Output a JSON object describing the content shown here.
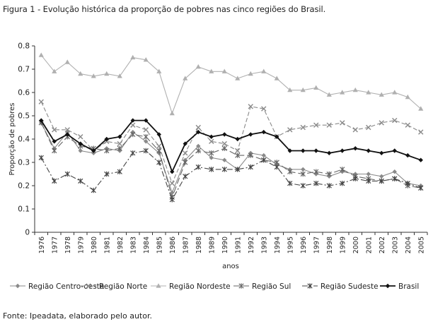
{
  "figure": {
    "caption": "Figura 1 - Evolução histórica da proporção de pobres nas cinco regiões do Brasil.",
    "source": "Fonte: Ipeadata, elaborado pelo autor."
  },
  "chart_data": {
    "type": "line",
    "title": "",
    "xlabel": "anos",
    "ylabel": "Proporção de pobres",
    "ylim": [
      0,
      0.8
    ],
    "yticks": [
      "0",
      "0.1",
      "0.2",
      "0.3",
      "0.4",
      "0.5",
      "0.6",
      "0.7",
      "0.8"
    ],
    "grid": false,
    "legend_position": "bottom",
    "categories": [
      "1976",
      "1977",
      "1978",
      "1979",
      "1980",
      "1981",
      "1982",
      "1983",
      "1984",
      "1985",
      "1986",
      "1987",
      "1988",
      "1989",
      "1990",
      "1991",
      "1992",
      "1993",
      "1994",
      "1995",
      "1996",
      "1997",
      "1998",
      "1999",
      "2000",
      "2001",
      "2002",
      "2003",
      "2004",
      "2005"
    ],
    "series": [
      {
        "name": "Região Centro-oeste",
        "color": "#8a8a8a",
        "dash": "solid",
        "marker": "diamond",
        "values": [
          0.47,
          0.36,
          0.43,
          0.35,
          0.34,
          0.36,
          0.35,
          0.43,
          0.39,
          0.34,
          0.17,
          0.31,
          0.37,
          0.32,
          0.31,
          0.27,
          0.34,
          0.33,
          0.29,
          0.27,
          0.27,
          0.25,
          0.24,
          0.26,
          0.25,
          0.25,
          0.24,
          0.26,
          0.21,
          0.2
        ]
      },
      {
        "name": "Região Norte",
        "color": "#8a8a8a",
        "dash": "dash",
        "marker": "x",
        "values": [
          0.56,
          0.44,
          0.44,
          0.41,
          0.35,
          0.39,
          0.38,
          0.46,
          0.44,
          0.37,
          0.21,
          0.34,
          0.45,
          0.39,
          0.38,
          0.35,
          0.54,
          0.53,
          0.41,
          0.44,
          0.45,
          0.46,
          0.46,
          0.47,
          0.44,
          0.45,
          0.47,
          0.48,
          0.46,
          0.43
        ]
      },
      {
        "name": "Região Nordeste",
        "color": "#b0b0b0",
        "dash": "solid",
        "marker": "triangle",
        "values": [
          0.76,
          0.69,
          0.73,
          0.68,
          0.67,
          0.68,
          0.67,
          0.75,
          0.74,
          0.69,
          0.51,
          0.66,
          0.71,
          0.69,
          0.69,
          0.66,
          0.68,
          0.69,
          0.66,
          0.61,
          0.61,
          0.62,
          0.59,
          0.6,
          0.61,
          0.6,
          0.59,
          0.6,
          0.58,
          0.53
        ]
      },
      {
        "name": "Região Sul",
        "color": "#666666",
        "dash": "longdash",
        "marker": "star",
        "values": [
          0.47,
          0.35,
          0.41,
          0.37,
          0.36,
          0.35,
          0.36,
          0.42,
          0.41,
          0.35,
          0.15,
          0.3,
          0.35,
          0.34,
          0.36,
          0.33,
          0.33,
          0.31,
          0.3,
          0.26,
          0.25,
          0.26,
          0.25,
          0.27,
          0.24,
          0.23,
          0.22,
          0.23,
          0.2,
          0.19
        ]
      },
      {
        "name": "Região Sudeste",
        "color": "#444444",
        "dash": "dashdot",
        "marker": "star",
        "values": [
          0.32,
          0.22,
          0.25,
          0.22,
          0.18,
          0.25,
          0.26,
          0.34,
          0.35,
          0.3,
          0.14,
          0.24,
          0.28,
          0.27,
          0.27,
          0.27,
          0.28,
          0.31,
          0.28,
          0.21,
          0.2,
          0.21,
          0.2,
          0.21,
          0.23,
          0.22,
          0.22,
          0.23,
          0.21,
          0.19
        ]
      },
      {
        "name": "Brasil",
        "color": "#111111",
        "dash": "solid",
        "marker": "diamond",
        "bold": true,
        "values": [
          0.48,
          0.39,
          0.42,
          0.38,
          0.35,
          0.4,
          0.41,
          0.48,
          0.48,
          0.42,
          0.26,
          0.38,
          0.43,
          0.41,
          0.42,
          0.4,
          0.42,
          0.43,
          0.41,
          0.35,
          0.35,
          0.35,
          0.34,
          0.35,
          0.36,
          0.35,
          0.34,
          0.35,
          0.33,
          0.31
        ]
      }
    ]
  }
}
